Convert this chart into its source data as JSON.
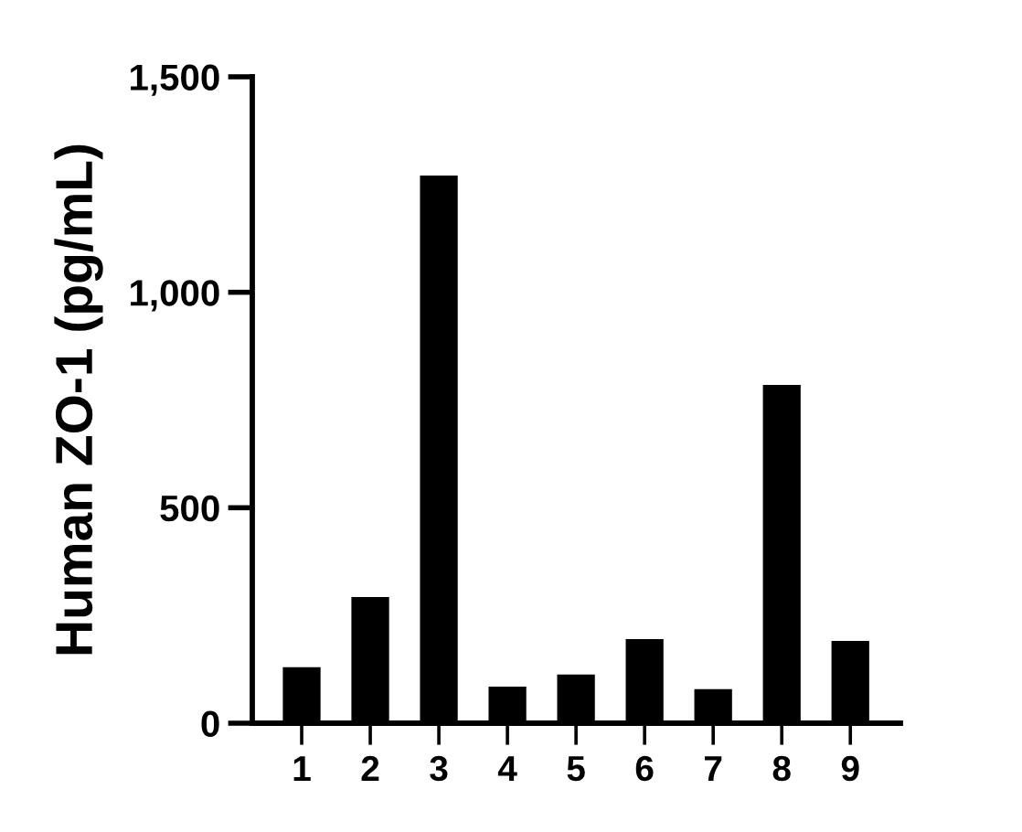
{
  "chart_data": {
    "type": "bar",
    "ylabel": "Human ZO-1 (pg/mL)",
    "categories": [
      "1",
      "2",
      "3",
      "4",
      "5",
      "6",
      "7",
      "8",
      "9"
    ],
    "values": [
      130,
      293,
      1271,
      85,
      113,
      195,
      79,
      785,
      191
    ],
    "color": "#000000",
    "ylim": [
      0,
      1500
    ],
    "yticks": [
      0,
      {
        "value": 500,
        "label": "500"
      },
      {
        "value": 1000,
        "label": "1,000"
      },
      {
        "value": 1500,
        "label": "1,500"
      }
    ],
    "grid": false,
    "legend": false
  }
}
